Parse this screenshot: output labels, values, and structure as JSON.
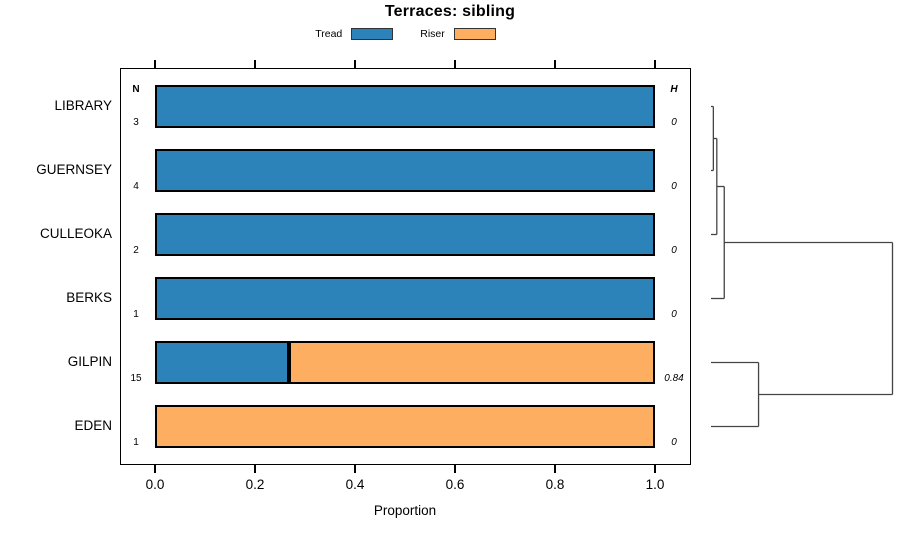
{
  "chart_data": {
    "type": "bar",
    "orientation": "horizontal-stacked",
    "title": "Terraces: sibling",
    "xlabel": "Proportion",
    "xlim": [
      0,
      1
    ],
    "xtick_values": [
      0.0,
      0.2,
      0.4,
      0.6,
      0.8,
      1.0
    ],
    "xtick_labels": [
      "0.0",
      "0.2",
      "0.4",
      "0.6",
      "0.8",
      "1.0"
    ],
    "grid": false,
    "legend_position": "top-center",
    "legend": [
      {
        "key": "tread",
        "label": "Tread",
        "color": "#2B83BA"
      },
      {
        "key": "riser",
        "label": "Riser",
        "color": "#FDAE61"
      }
    ],
    "columns": {
      "n_header": "N",
      "h_header": "H"
    },
    "categories": [
      "LIBRARY",
      "GUERNSEY",
      "CULLEOKA",
      "BERKS",
      "GILPIN",
      "EDEN"
    ],
    "rows": [
      {
        "category": "LIBRARY",
        "n": "3",
        "h": "0",
        "tread": 1.0,
        "riser": 0.0
      },
      {
        "category": "GUERNSEY",
        "n": "4",
        "h": "0",
        "tread": 1.0,
        "riser": 0.0
      },
      {
        "category": "CULLEOKA",
        "n": "2",
        "h": "0",
        "tread": 1.0,
        "riser": 0.0
      },
      {
        "category": "BERKS",
        "n": "1",
        "h": "0",
        "tread": 1.0,
        "riser": 0.0
      },
      {
        "category": "GILPIN",
        "n": "15",
        "h": "0.84",
        "tread": 0.267,
        "riser": 0.733
      },
      {
        "category": "EDEN",
        "n": "1",
        "h": "0",
        "tread": 0.0,
        "riser": 1.0
      }
    ],
    "dendrogram": {
      "description": "right-side cluster tree, leaves at rows, heights normalized 0-1",
      "merges": [
        {
          "id": "m1",
          "children": [
            "leaf0",
            "leaf1"
          ],
          "height": 0.013
        },
        {
          "id": "m2",
          "children": [
            "m1",
            "leaf2"
          ],
          "height": 0.032
        },
        {
          "id": "m3",
          "children": [
            "m2",
            "leaf3"
          ],
          "height": 0.073
        },
        {
          "id": "m4",
          "children": [
            "leaf4",
            "leaf5"
          ],
          "height": 0.262
        },
        {
          "id": "root",
          "children": [
            "m3",
            "m4"
          ],
          "height": 1.0
        }
      ]
    },
    "colors": {
      "tread": "#2B83BA",
      "riser": "#FDAE61",
      "bar_border": "#000000",
      "axis": "#000000",
      "dendrogram_line": "#444444",
      "background": "#FFFFFF"
    }
  }
}
